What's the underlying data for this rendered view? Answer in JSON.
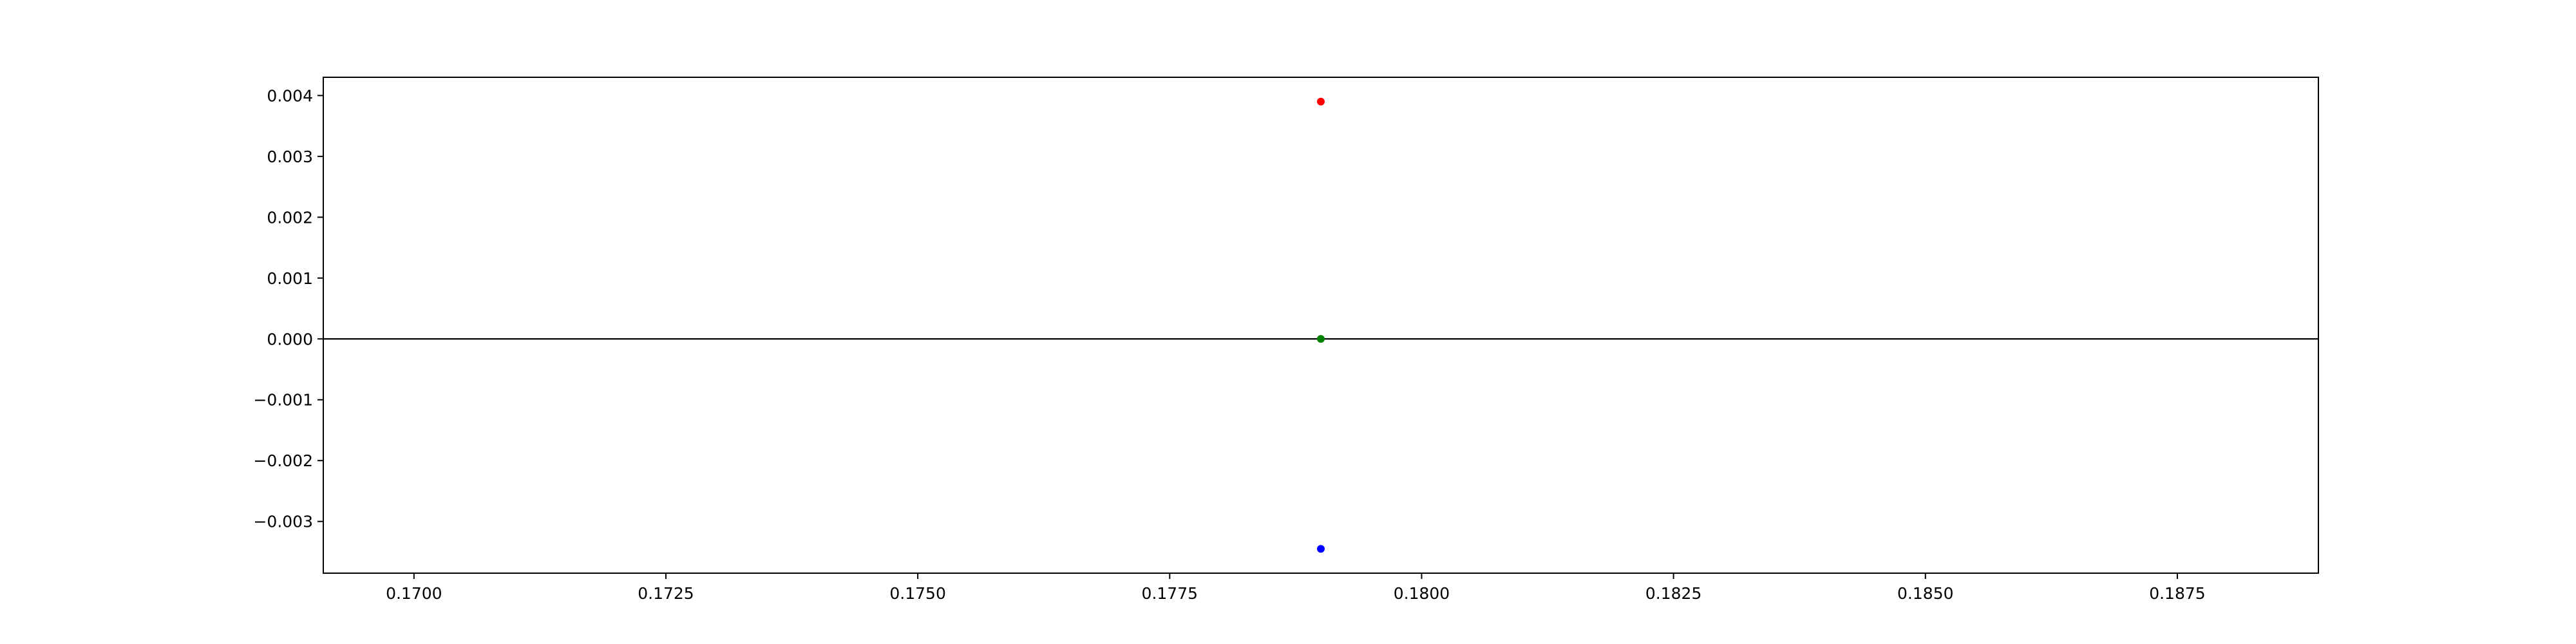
{
  "chart_data": {
    "type": "scatter",
    "title": "",
    "xlabel": "",
    "ylabel": "",
    "xlim": [
      0.1691,
      0.1889
    ],
    "ylim": [
      -0.00385,
      0.0043
    ],
    "x_ticks": [
      {
        "value": 0.17,
        "label": "0.1700"
      },
      {
        "value": 0.1725,
        "label": "0.1725"
      },
      {
        "value": 0.175,
        "label": "0.1750"
      },
      {
        "value": 0.1775,
        "label": "0.1775"
      },
      {
        "value": 0.18,
        "label": "0.1800"
      },
      {
        "value": 0.1825,
        "label": "0.1825"
      },
      {
        "value": 0.185,
        "label": "0.1850"
      },
      {
        "value": 0.1875,
        "label": "0.1875"
      }
    ],
    "y_ticks": [
      {
        "value": 0.004,
        "label": "0.004"
      },
      {
        "value": 0.003,
        "label": "0.003"
      },
      {
        "value": 0.002,
        "label": "0.002"
      },
      {
        "value": 0.001,
        "label": "0.001"
      },
      {
        "value": 0.0,
        "label": "0.000"
      },
      {
        "value": -0.001,
        "label": "−0.001"
      },
      {
        "value": -0.002,
        "label": "−0.002"
      },
      {
        "value": -0.003,
        "label": "−0.003"
      }
    ],
    "hline": {
      "y": 0,
      "color": "#000000"
    },
    "grid": false,
    "legend": false,
    "series": [
      {
        "color": "#ff0000",
        "points": [
          {
            "x": 0.179,
            "y": 0.0039
          }
        ]
      },
      {
        "color": "#008000",
        "points": [
          {
            "x": 0.179,
            "y": 0.0
          }
        ]
      },
      {
        "color": "#0000ff",
        "points": [
          {
            "x": 0.179,
            "y": -0.00345
          }
        ]
      }
    ]
  }
}
